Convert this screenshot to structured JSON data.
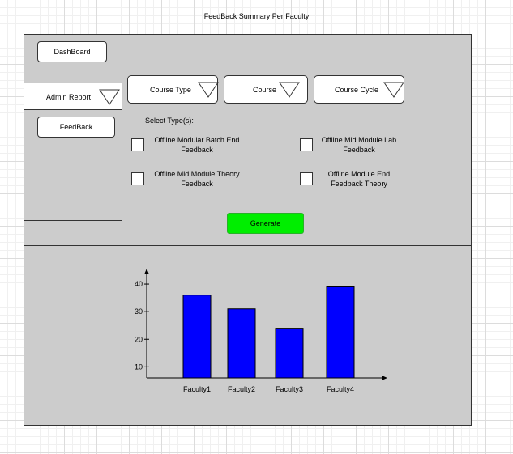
{
  "page": {
    "title": "FeedBack Summary Per Faculty"
  },
  "sidebar": {
    "dashboard_label": "DashBoard",
    "admin_report_label": "Admin Report",
    "feedback_label": "FeedBack"
  },
  "filters": {
    "course_type_label": "Course Type",
    "course_label": "Course",
    "course_cycle_label": "Course Cycle"
  },
  "types": {
    "heading": "Select Type(s):",
    "options": [
      {
        "line1": "Offline Modular Batch End",
        "line2": "Feedback"
      },
      {
        "line1": "Offline Mid Module Lab",
        "line2": "Feedback"
      },
      {
        "line1": "Offline Mid Module Theory",
        "line2": "Feedback"
      },
      {
        "line1": "Offline Module End",
        "line2": "Feedback Theory"
      }
    ]
  },
  "actions": {
    "generate_label": "Generate"
  },
  "colors": {
    "panel": "#cccccc",
    "generate": "#00ee00",
    "bars": "#0000ff"
  },
  "chart_data": {
    "type": "bar",
    "categories": [
      "Faculty1",
      "Faculty2",
      "Faculty3",
      "Faculty4"
    ],
    "values": [
      36,
      31,
      24,
      39
    ],
    "yticks": [
      10,
      20,
      30,
      40
    ],
    "ylim": [
      6,
      45
    ],
    "title": "",
    "xlabel": "",
    "ylabel": "",
    "grid": false,
    "bar_color": "#0000ff"
  }
}
